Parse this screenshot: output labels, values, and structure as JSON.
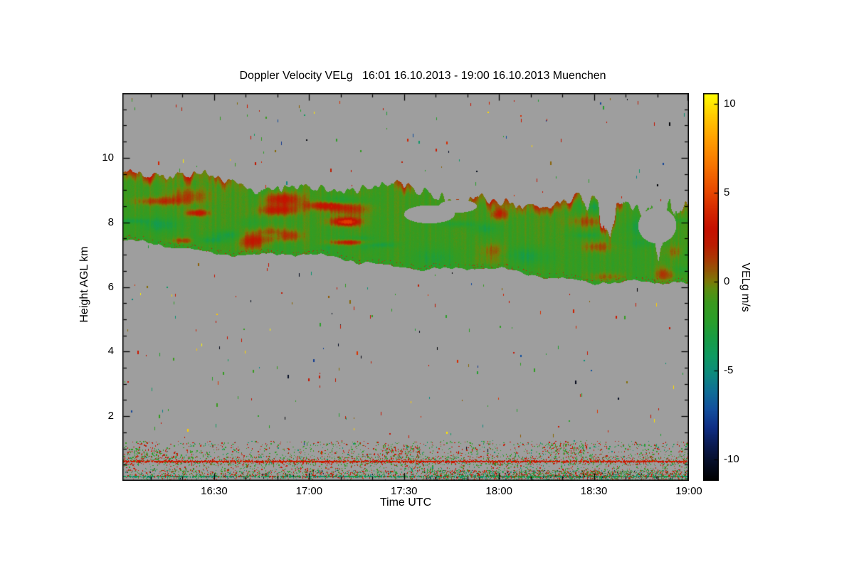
{
  "chart_data": {
    "type": "heatmap",
    "title": "Doppler Velocity VELg   16:01 16.10.2013 - 19:00 16.10.2013 Muenchen",
    "xlabel": "Time UTC",
    "ylabel": "Height AGL km",
    "x_axis": {
      "start": "16:01",
      "end": "19:00",
      "duration_minutes": 179,
      "ticks": [
        {
          "label": "16:30",
          "minute": 29
        },
        {
          "label": "17:00",
          "minute": 59
        },
        {
          "label": "17:30",
          "minute": 89
        },
        {
          "label": "18:00",
          "minute": 119
        },
        {
          "label": "18:30",
          "minute": 149
        },
        {
          "label": "19:00",
          "minute": 179
        }
      ],
      "minor_tick_minutes": [
        9,
        19,
        39,
        49,
        69,
        79,
        99,
        109,
        129,
        139,
        159,
        169
      ]
    },
    "y_axis": {
      "range_km": [
        0,
        12
      ],
      "ticks": [
        2,
        4,
        6,
        8,
        10
      ],
      "minor_step_km": 0.5
    },
    "colorbar": {
      "label": "VELg m/s",
      "vmin": -11.2,
      "vmax": 10.6,
      "ticks": [
        10,
        5,
        0,
        -5,
        -10
      ],
      "stops": [
        [
          -11.2,
          "#000000"
        ],
        [
          -10.2,
          "#050d26"
        ],
        [
          -9.2,
          "#0a1a52"
        ],
        [
          -8.2,
          "#0f2f86"
        ],
        [
          -7.2,
          "#134f9e"
        ],
        [
          -6.2,
          "#0f6e97"
        ],
        [
          -5.2,
          "#0d8a7e"
        ],
        [
          -4.2,
          "#0e9a62"
        ],
        [
          -3.2,
          "#189c45"
        ],
        [
          -2.2,
          "#2a9e2a"
        ],
        [
          -1.2,
          "#3a9a1e"
        ],
        [
          -0.4,
          "#5f8d10"
        ],
        [
          0.0,
          "#7c7a08"
        ],
        [
          0.6,
          "#925806"
        ],
        [
          1.3,
          "#aa3804"
        ],
        [
          2.1,
          "#bc1c02"
        ],
        [
          3.0,
          "#c61000"
        ],
        [
          4.0,
          "#d42800"
        ],
        [
          5.0,
          "#e74600"
        ],
        [
          6.5,
          "#f67300"
        ],
        [
          8.0,
          "#ff9e00"
        ],
        [
          9.3,
          "#ffc900"
        ],
        [
          10.6,
          "#ffff00"
        ]
      ]
    },
    "no_data_color": "#9e9e9e",
    "cloud_layer": {
      "description": "Descending mid/upper-level cloud band; mostly weak negative Doppler velocities (green, about -2 to 0 m/s) with positive velocity patches (orange/red, about +1 to +4 m/s) along the upper edge; band becomes fragmented after 18:15",
      "base_km": {
        "start": 7.35,
        "end": 6.0
      },
      "top_km": {
        "start": 9.5,
        "end": 8.35
      },
      "mean_velocity_ms": -1.3,
      "holes": [
        {
          "minute": 97,
          "km": 8.25,
          "rmin": 8,
          "rkm": 0.28
        },
        {
          "minute": 106,
          "km": 8.5,
          "rmin": 6,
          "rkm": 0.2
        },
        {
          "minute": 169,
          "km": 7.9,
          "rmin": 6,
          "rkm": 0.55
        }
      ]
    },
    "boundary_layer": {
      "description": "Noisy aerosol/boundary-layer returns below ~1.25 km; persistent red-orange line near 0.62 km, teal/green line near 0.13 km, dense mixed-color band below 0.33 km strengthening after ~17:40",
      "red_line_km": 0.62,
      "teal_line_km": 0.13,
      "speckle_top_km": 1.25,
      "dense_band_top_km": 0.33,
      "dense_band_start_minute": 100
    }
  }
}
